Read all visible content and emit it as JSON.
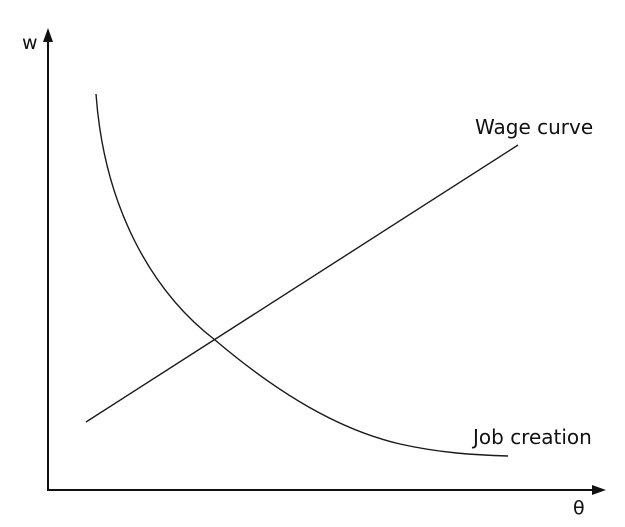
{
  "axes": {
    "y_label": "w",
    "x_label": "θ"
  },
  "curves": {
    "wage_curve_label": "Wage curve",
    "job_creation_label": "Job creation"
  },
  "colors": {
    "ink": "#111111",
    "background": "#ffffff"
  }
}
